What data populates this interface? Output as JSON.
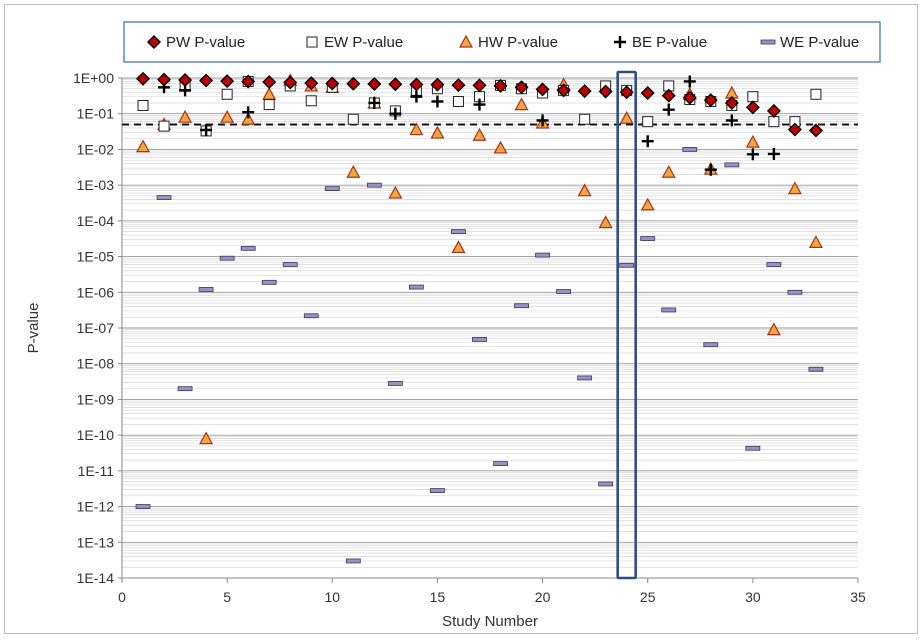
{
  "chart_data": {
    "type": "scatter",
    "title": "",
    "xlabel": "Study Number",
    "ylabel": "P-value",
    "xlim": [
      0,
      35
    ],
    "x_ticks": [
      0,
      5,
      10,
      15,
      20,
      25,
      30,
      35
    ],
    "y_scale": "log",
    "ylim": [
      1e-14,
      1
    ],
    "y_tick_labels": [
      "1E+00",
      "1E-01",
      "1E-02",
      "1E-03",
      "1E-04",
      "1E-05",
      "1E-06",
      "1E-07",
      "1E-08",
      "1E-09",
      "1E-10",
      "1E-11",
      "1E-12",
      "1E-13",
      "1E-14"
    ],
    "grid": true,
    "legend_position": "top",
    "reference_line": {
      "y": 0.05,
      "style": "dashed"
    },
    "highlight": {
      "x": 24,
      "style": "rectangle"
    },
    "colors": {
      "pw_fill": "#c00000",
      "hw_fill": "#f2a640",
      "hw_stroke": "#a83218",
      "we_fill": "#9a91c4",
      "we_stroke": "#3a3560",
      "highlight": "#2f4f7f",
      "legend_border": "#4f81bd"
    },
    "series": [
      {
        "name": "PW P-value",
        "marker": "diamond",
        "x": [
          1,
          2,
          3,
          4,
          5,
          6,
          7,
          8,
          9,
          10,
          11,
          12,
          13,
          14,
          15,
          16,
          17,
          18,
          19,
          20,
          21,
          22,
          23,
          24,
          25,
          26,
          27,
          28,
          29,
          30,
          31,
          32,
          33
        ],
        "y": [
          0.95,
          0.9,
          0.88,
          0.85,
          0.82,
          0.8,
          0.77,
          0.75,
          0.72,
          0.7,
          0.69,
          0.68,
          0.67,
          0.66,
          0.65,
          0.63,
          0.62,
          0.6,
          0.55,
          0.48,
          0.45,
          0.43,
          0.42,
          0.4,
          0.38,
          0.32,
          0.28,
          0.24,
          0.2,
          0.15,
          0.12,
          0.036,
          0.034
        ]
      },
      {
        "name": "EW P-value",
        "marker": "square",
        "x": [
          1,
          2,
          3,
          4,
          5,
          6,
          7,
          8,
          9,
          10,
          11,
          12,
          13,
          14,
          15,
          16,
          17,
          18,
          19,
          20,
          21,
          22,
          23,
          24,
          25,
          26,
          27,
          28,
          29,
          30,
          31,
          32,
          33
        ],
        "y": [
          0.17,
          0.045,
          0.65,
          0.033,
          0.35,
          0.8,
          0.18,
          0.6,
          0.23,
          0.55,
          0.07,
          0.2,
          0.12,
          0.45,
          0.5,
          0.22,
          0.3,
          0.62,
          0.5,
          0.38,
          0.45,
          0.07,
          0.6,
          0.45,
          0.06,
          0.6,
          0.25,
          0.22,
          0.17,
          0.3,
          0.06,
          0.06,
          0.35
        ]
      },
      {
        "name": "HW P-value",
        "marker": "triangle",
        "x": [
          1,
          2,
          3,
          4,
          5,
          6,
          7,
          8,
          9,
          10,
          11,
          12,
          13,
          14,
          15,
          16,
          17,
          18,
          19,
          20,
          21,
          22,
          23,
          24,
          25,
          26,
          27,
          28,
          29,
          30,
          31,
          32,
          33
        ],
        "y": [
          0.012,
          0.05,
          0.08,
          8e-11,
          0.08,
          0.07,
          0.35,
          0.85,
          0.6,
          0.55,
          0.0023,
          0.2,
          0.0006,
          0.036,
          0.029,
          1.8e-05,
          0.025,
          0.011,
          0.18,
          0.055,
          0.65,
          0.0007,
          9e-05,
          0.075,
          0.00028,
          0.0023,
          0.35,
          0.0028,
          0.38,
          0.016,
          9e-08,
          0.0008,
          2.5e-05
        ]
      },
      {
        "name": "BE P-value",
        "marker": "plus",
        "x": [
          2,
          3,
          4,
          6,
          12,
          13,
          14,
          15,
          17,
          19,
          20,
          21,
          25,
          26,
          27,
          28,
          29,
          30,
          31
        ],
        "y": [
          0.55,
          0.45,
          0.035,
          0.11,
          0.2,
          0.1,
          0.3,
          0.22,
          0.18,
          0.55,
          0.065,
          0.45,
          0.017,
          0.13,
          0.8,
          0.0027,
          0.065,
          0.0073,
          0.0075
        ]
      },
      {
        "name": "WE P-value",
        "marker": "dash",
        "x": [
          1,
          2,
          3,
          4,
          5,
          6,
          7,
          8,
          9,
          10,
          11,
          12,
          13,
          14,
          15,
          16,
          17,
          18,
          19,
          20,
          21,
          22,
          23,
          24,
          25,
          26,
          27,
          28,
          29,
          30,
          31,
          32,
          33
        ],
        "y": [
          1e-12,
          0.00045,
          2e-09,
          1.2e-06,
          9e-06,
          1.7e-05,
          1.9e-06,
          6e-06,
          2.2e-07,
          0.0008,
          3e-14,
          0.001,
          2.8e-09,
          1.4e-06,
          2.8e-12,
          5e-05,
          4.8e-08,
          1.6e-11,
          4.2e-07,
          1.1e-05,
          1.05e-06,
          4e-09,
          4.3e-12,
          5.7e-06,
          3.2e-05,
          3.2e-07,
          0.01,
          3.4e-08,
          0.0037,
          4.3e-11,
          6e-06,
          1e-06,
          7e-09
        ]
      }
    ]
  }
}
